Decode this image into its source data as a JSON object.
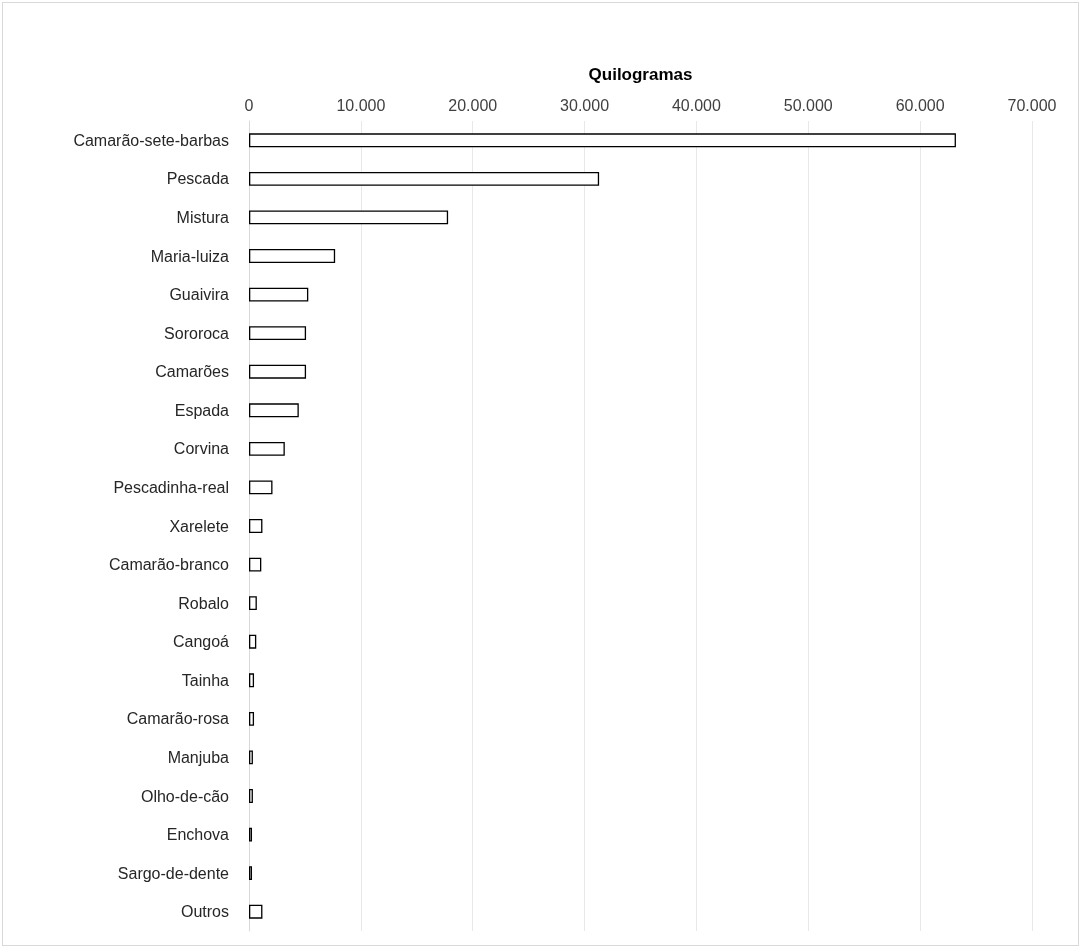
{
  "chart_data": {
    "type": "bar",
    "orientation": "horizontal",
    "xlabel": "Quilogramas",
    "categories": [
      "Camarão-sete-barbas",
      "Pescada",
      "Mistura",
      "Maria-luiza",
      "Guaivira",
      "Sororoca",
      "Camarões",
      "Espada",
      "Corvina",
      "Pescadinha-real",
      "Xarelete",
      "Camarão-branco",
      "Robalo",
      "Cangoá",
      "Tainha",
      "Camarão-rosa",
      "Manjuba",
      "Olho-de-cão",
      "Enchova",
      "Sargo-de-dente",
      "Outros"
    ],
    "values": [
      63200,
      31300,
      17800,
      7700,
      5300,
      5100,
      5100,
      4450,
      3200,
      2100,
      1200,
      1100,
      700,
      650,
      450,
      450,
      350,
      350,
      270,
      270,
      1200
    ],
    "color": "#ffffff",
    "xlim": [
      0,
      70000
    ],
    "xticks": [
      0,
      {
        "value": 10000,
        "label": "10.000"
      },
      {
        "value": 20000,
        "label": "20.000"
      },
      {
        "value": 30000,
        "label": "30.000"
      },
      {
        "value": 40000,
        "label": "40.000"
      },
      {
        "value": 50000,
        "label": "50.000"
      },
      {
        "value": 60000,
        "label": "60.000"
      },
      {
        "value": 70000,
        "label": "70.000"
      }
    ],
    "grid": "x"
  }
}
